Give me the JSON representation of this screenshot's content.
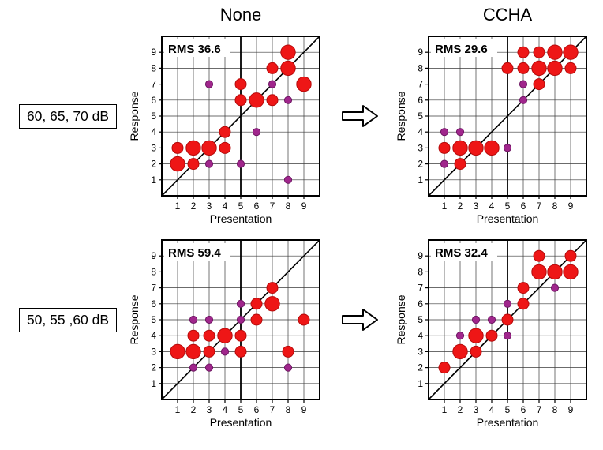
{
  "header": {
    "none": "None",
    "ccha": "CCHA"
  },
  "row_labels": [
    "60, 65, 70 dB",
    "50, 55 ,60 dB"
  ],
  "arrow_icon": "hollow-right-arrow",
  "colors": {
    "red": "#ee1616",
    "red_stroke": "#b50b0b",
    "purple": "#a0268c",
    "purple_stroke": "#6e1663",
    "grid": "#3a3a3a",
    "axis": "#000000"
  },
  "chart_data": [
    {
      "type": "scatter",
      "condition": "None",
      "levels": "60, 65, 70 dB",
      "rms_label": "RMS 36.6",
      "xlabel": "Presentation",
      "ylabel": "Response",
      "xlim": [
        0,
        10
      ],
      "ylim": [
        0,
        10
      ],
      "xticks": [
        1,
        2,
        3,
        4,
        5,
        6,
        7,
        8,
        9
      ],
      "yticks": [
        1,
        2,
        3,
        4,
        5,
        6,
        7,
        8,
        9
      ],
      "grid": true,
      "identity_line": true,
      "vline_x": 5,
      "point_format": [
        "presentation",
        "response",
        "size",
        "color"
      ],
      "points": [
        [
          1,
          2,
          "l",
          "red"
        ],
        [
          2,
          2,
          "m",
          "red"
        ],
        [
          3,
          2,
          "s",
          "purple"
        ],
        [
          5,
          2,
          "s",
          "purple"
        ],
        [
          8,
          1,
          "s",
          "purple"
        ],
        [
          1,
          3,
          "m",
          "red"
        ],
        [
          2,
          3,
          "l",
          "red"
        ],
        [
          3,
          3,
          "l",
          "red"
        ],
        [
          4,
          3,
          "m",
          "red"
        ],
        [
          4,
          4,
          "m",
          "red"
        ],
        [
          6,
          4,
          "s",
          "purple"
        ],
        [
          5,
          6,
          "m",
          "red"
        ],
        [
          6,
          6,
          "l",
          "red"
        ],
        [
          7,
          6,
          "m",
          "red"
        ],
        [
          8,
          6,
          "s",
          "purple"
        ],
        [
          3,
          7,
          "s",
          "purple"
        ],
        [
          5,
          7,
          "m",
          "red"
        ],
        [
          7,
          7,
          "s",
          "purple"
        ],
        [
          9,
          7,
          "l",
          "red"
        ],
        [
          7,
          8,
          "m",
          "red"
        ],
        [
          8,
          8,
          "l",
          "red"
        ],
        [
          8,
          9,
          "l",
          "red"
        ]
      ]
    },
    {
      "type": "scatter",
      "condition": "CCHA",
      "levels": "60, 65, 70 dB",
      "rms_label": "RMS 29.6",
      "xlabel": "Presentation",
      "ylabel": "Response",
      "xlim": [
        0,
        10
      ],
      "ylim": [
        0,
        10
      ],
      "xticks": [
        1,
        2,
        3,
        4,
        5,
        6,
        7,
        8,
        9
      ],
      "yticks": [
        1,
        2,
        3,
        4,
        5,
        6,
        7,
        8,
        9
      ],
      "grid": true,
      "identity_line": true,
      "vline_x": 5,
      "point_format": [
        "presentation",
        "response",
        "size",
        "color"
      ],
      "points": [
        [
          1,
          2,
          "s",
          "purple"
        ],
        [
          2,
          2,
          "m",
          "red"
        ],
        [
          1,
          3,
          "m",
          "red"
        ],
        [
          2,
          3,
          "l",
          "red"
        ],
        [
          3,
          3,
          "l",
          "red"
        ],
        [
          4,
          3,
          "l",
          "red"
        ],
        [
          5,
          3,
          "s",
          "purple"
        ],
        [
          1,
          4,
          "s",
          "purple"
        ],
        [
          2,
          4,
          "s",
          "purple"
        ],
        [
          6,
          6,
          "s",
          "purple"
        ],
        [
          6,
          7,
          "s",
          "purple"
        ],
        [
          7,
          7,
          "m",
          "red"
        ],
        [
          5,
          8,
          "m",
          "red"
        ],
        [
          6,
          8,
          "m",
          "red"
        ],
        [
          7,
          8,
          "l",
          "red"
        ],
        [
          8,
          8,
          "l",
          "red"
        ],
        [
          9,
          8,
          "m",
          "red"
        ],
        [
          6,
          9,
          "m",
          "red"
        ],
        [
          7,
          9,
          "m",
          "red"
        ],
        [
          8,
          9,
          "l",
          "red"
        ],
        [
          9,
          9,
          "l",
          "red"
        ]
      ]
    },
    {
      "type": "scatter",
      "condition": "None",
      "levels": "50, 55 ,60 dB",
      "rms_label": "RMS 59.4",
      "xlabel": "Presentation",
      "ylabel": "Response",
      "xlim": [
        0,
        10
      ],
      "ylim": [
        0,
        10
      ],
      "xticks": [
        1,
        2,
        3,
        4,
        5,
        6,
        7,
        8,
        9
      ],
      "yticks": [
        1,
        2,
        3,
        4,
        5,
        6,
        7,
        8,
        9
      ],
      "grid": true,
      "identity_line": true,
      "vline_x": 5,
      "point_format": [
        "presentation",
        "response",
        "size",
        "color"
      ],
      "points": [
        [
          2,
          2,
          "s",
          "purple"
        ],
        [
          3,
          2,
          "s",
          "purple"
        ],
        [
          8,
          2,
          "s",
          "purple"
        ],
        [
          1,
          3,
          "l",
          "red"
        ],
        [
          2,
          3,
          "l",
          "red"
        ],
        [
          3,
          3,
          "m",
          "red"
        ],
        [
          4,
          3,
          "s",
          "purple"
        ],
        [
          5,
          3,
          "m",
          "red"
        ],
        [
          8,
          3,
          "m",
          "red"
        ],
        [
          2,
          4,
          "m",
          "red"
        ],
        [
          3,
          4,
          "m",
          "red"
        ],
        [
          4,
          4,
          "l",
          "red"
        ],
        [
          5,
          4,
          "m",
          "red"
        ],
        [
          2,
          5,
          "s",
          "purple"
        ],
        [
          3,
          5,
          "s",
          "purple"
        ],
        [
          5,
          5,
          "s",
          "purple"
        ],
        [
          6,
          5,
          "m",
          "red"
        ],
        [
          9,
          5,
          "m",
          "red"
        ],
        [
          5,
          6,
          "s",
          "purple"
        ],
        [
          6,
          6,
          "m",
          "red"
        ],
        [
          7,
          6,
          "l",
          "red"
        ],
        [
          7,
          7,
          "m",
          "red"
        ]
      ]
    },
    {
      "type": "scatter",
      "condition": "CCHA",
      "levels": "50, 55 ,60 dB",
      "rms_label": "RMS 32.4",
      "xlabel": "Presentation",
      "ylabel": "Response",
      "xlim": [
        0,
        10
      ],
      "ylim": [
        0,
        10
      ],
      "xticks": [
        1,
        2,
        3,
        4,
        5,
        6,
        7,
        8,
        9
      ],
      "yticks": [
        1,
        2,
        3,
        4,
        5,
        6,
        7,
        8,
        9
      ],
      "grid": true,
      "identity_line": true,
      "vline_x": 5,
      "point_format": [
        "presentation",
        "response",
        "size",
        "color"
      ],
      "points": [
        [
          1,
          2,
          "m",
          "red"
        ],
        [
          2,
          3,
          "l",
          "red"
        ],
        [
          3,
          3,
          "m",
          "red"
        ],
        [
          2,
          4,
          "s",
          "purple"
        ],
        [
          3,
          4,
          "l",
          "red"
        ],
        [
          4,
          4,
          "m",
          "red"
        ],
        [
          5,
          4,
          "s",
          "purple"
        ],
        [
          3,
          5,
          "s",
          "purple"
        ],
        [
          4,
          5,
          "s",
          "purple"
        ],
        [
          5,
          5,
          "m",
          "red"
        ],
        [
          5,
          6,
          "s",
          "purple"
        ],
        [
          6,
          6,
          "m",
          "red"
        ],
        [
          6,
          7,
          "m",
          "red"
        ],
        [
          8,
          7,
          "s",
          "purple"
        ],
        [
          7,
          8,
          "l",
          "red"
        ],
        [
          8,
          8,
          "l",
          "red"
        ],
        [
          9,
          8,
          "l",
          "red"
        ],
        [
          7,
          9,
          "m",
          "red"
        ],
        [
          9,
          9,
          "m",
          "red"
        ]
      ]
    }
  ]
}
